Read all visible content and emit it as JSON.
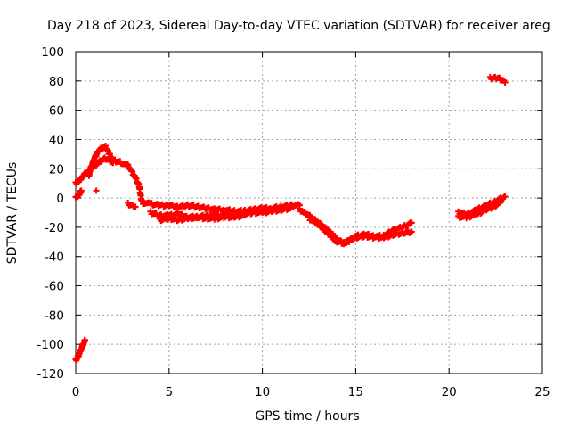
{
  "chart_data": {
    "type": "scatter",
    "title": "Day 218 of 2023, Sidereal Day-to-day VTEC variation (SDTVAR) for receiver areg",
    "xlabel": "GPS time / hours",
    "ylabel": "SDTVAR / TECUs",
    "xlim": [
      0,
      25
    ],
    "ylim": [
      -120,
      100
    ],
    "xticks": [
      0,
      5,
      10,
      15,
      20,
      25
    ],
    "yticks": [
      -120,
      -100,
      -80,
      -60,
      -40,
      -20,
      0,
      20,
      40,
      60,
      80,
      100
    ],
    "grid": true,
    "marker": "+",
    "marker_color": "#ff0000",
    "series": [
      {
        "name": "SDTVAR",
        "segments": [
          {
            "x": [
              0.0,
              0.1,
              0.2,
              0.3,
              0.4,
              0.5
            ],
            "y": [
              -111,
              -109,
              -106,
              -103,
              -100,
              -97
            ]
          },
          {
            "x": [
              0.0,
              0.05,
              0.1,
              0.15,
              0.2,
              0.25,
              0.3
            ],
            "y": [
              0,
              0,
              1,
              2,
              3,
              4,
              5
            ]
          },
          {
            "x": [
              0.0,
              0.2,
              0.4,
              0.6
            ],
            "y": [
              10,
              12,
              15,
              18
            ]
          },
          {
            "x": [
              0.7,
              0.8,
              1.0,
              1.2,
              1.4,
              1.6,
              1.8,
              2.0,
              2.2,
              2.5,
              2.8,
              3.0,
              3.2,
              3.4,
              3.5,
              3.6
            ],
            "y": [
              15,
              20,
              27,
              32,
              34,
              35,
              30,
              26,
              25,
              24,
              22,
              18,
              14,
              8,
              0,
              -4
            ]
          },
          {
            "x": [
              0.8,
              1.0,
              1.2,
              1.4,
              1.6,
              1.8,
              2.0
            ],
            "y": [
              20,
              22,
              24,
              26,
              27,
              26,
              24
            ]
          },
          {
            "x": [
              1.1
            ],
            "y": [
              5
            ]
          },
          {
            "x": [
              2.8,
              3.0,
              3.2
            ],
            "y": [
              -4,
              -5,
              -6
            ]
          },
          {
            "x": [
              3.6,
              4.0,
              4.5,
              5.0,
              5.5,
              6.0,
              6.5,
              7.0,
              7.5,
              8.0,
              8.5,
              9.0,
              9.5,
              10.0,
              10.5,
              11.0,
              11.5,
              12.0
            ],
            "y": [
              -3,
              -4,
              -5,
              -5,
              -6,
              -5,
              -6,
              -7,
              -8,
              -8,
              -9,
              -9,
              -8,
              -7,
              -7,
              -6,
              -5,
              -5
            ]
          },
          {
            "x": [
              4.0,
              4.5,
              5.0,
              5.5,
              6.0,
              6.5,
              7.0,
              7.5,
              8.0,
              8.5,
              9.0,
              9.5,
              10.0,
              10.5,
              11.0,
              11.5
            ],
            "y": [
              -10,
              -12,
              -12,
              -11,
              -13,
              -13,
              -12,
              -12,
              -12,
              -12,
              -11,
              -10,
              -10,
              -9,
              -8,
              -7
            ]
          },
          {
            "x": [
              4.5,
              5.0,
              5.5,
              6.0,
              6.5,
              7.0,
              7.5,
              8.0,
              8.5,
              9.0
            ],
            "y": [
              -15,
              -14,
              -15,
              -14,
              -13,
              -14,
              -14,
              -13,
              -13,
              -12
            ]
          },
          {
            "x": [
              12.0,
              12.5,
              13.0,
              13.5,
              14.0,
              14.3,
              14.7,
              15.0,
              15.5,
              16.0,
              16.5,
              17.0,
              17.5,
              18.0
            ],
            "y": [
              -8,
              -12,
              -17,
              -22,
              -28,
              -31,
              -29,
              -26,
              -25,
              -26,
              -26,
              -22,
              -20,
              -17
            ]
          },
          {
            "x": [
              12.5,
              13.0,
              13.5,
              14.0,
              14.5,
              15.0,
              15.5,
              16.0,
              16.5,
              17.0,
              17.5,
              18.0
            ],
            "y": [
              -14,
              -18,
              -24,
              -30,
              -30,
              -27,
              -26,
              -27,
              -27,
              -25,
              -24,
              -23
            ]
          },
          {
            "x": [
              20.5,
              21.0,
              21.5,
              22.0,
              22.5,
              23.0
            ],
            "y": [
              -10,
              -11,
              -8,
              -5,
              -2,
              1
            ]
          },
          {
            "x": [
              20.5,
              21.0,
              21.5,
              22.0,
              22.5,
              22.8
            ],
            "y": [
              -13,
              -13,
              -11,
              -8,
              -5,
              -2
            ]
          },
          {
            "x": [
              22.2,
              22.4,
              22.6,
              22.8,
              23.0
            ],
            "y": [
              82,
              82,
              82,
              81,
              79
            ]
          }
        ]
      }
    ]
  }
}
